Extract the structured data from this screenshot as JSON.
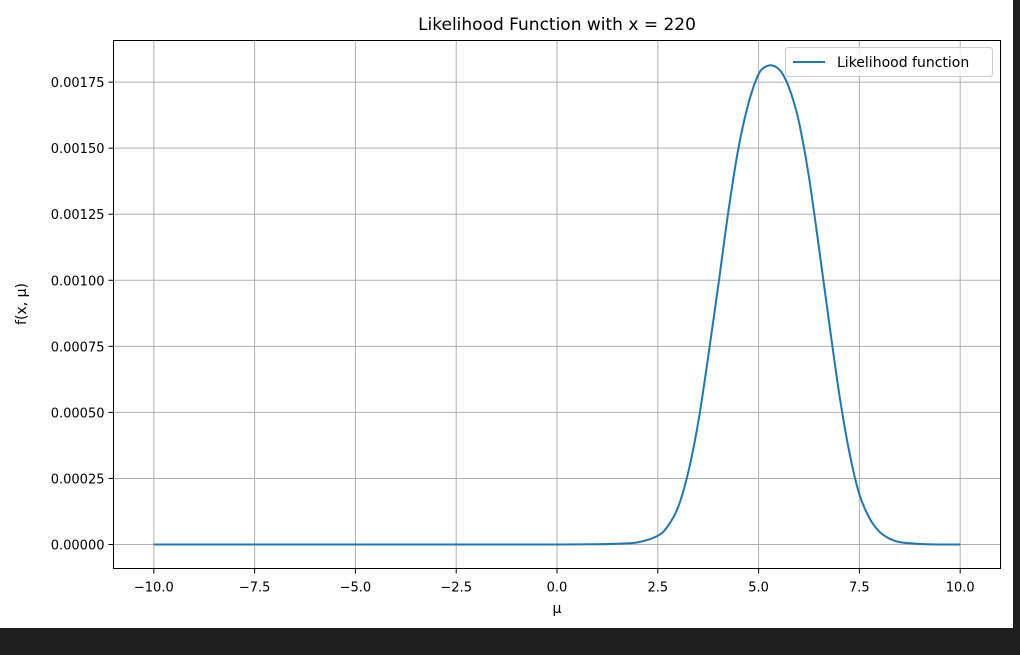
{
  "chart_data": {
    "type": "line",
    "title": "Likelihood Function with x = 220",
    "xlabel": "μ",
    "ylabel": "f(x, μ)",
    "xlim": [
      -11.0,
      11.0
    ],
    "ylim": [
      -9.08e-05,
      0.0019075
    ],
    "x_ticks": [
      -10.0,
      -7.5,
      -5.0,
      -2.5,
      0.0,
      2.5,
      5.0,
      7.5,
      10.0
    ],
    "x_tick_labels": [
      "−10.0",
      "−7.5",
      "−5.0",
      "−2.5",
      "0.0",
      "2.5",
      "5.0",
      "7.5",
      "10.0"
    ],
    "y_ticks": [
      0.0,
      0.00025,
      0.0005,
      0.00075,
      0.001,
      0.00125,
      0.0015,
      0.00175
    ],
    "y_tick_labels": [
      "0.00000",
      "0.00025",
      "0.00050",
      "0.00075",
      "0.00100",
      "0.00125",
      "0.00150",
      "0.00175"
    ],
    "grid": true,
    "legend_position": "top-right",
    "series": [
      {
        "name": "Likelihood function",
        "color": "#1f77b4",
        "x": [
          -10.0,
          -2.0,
          0.0,
          1.0,
          1.5,
          2.0,
          2.5,
          2.75,
          3.0,
          3.25,
          3.5,
          3.75,
          4.0,
          4.25,
          4.5,
          4.75,
          5.0,
          5.2,
          5.4,
          5.6,
          5.8,
          6.0,
          6.25,
          6.5,
          6.75,
          7.0,
          7.25,
          7.5,
          7.75,
          8.0,
          8.25,
          8.5,
          9.0,
          9.5,
          10.0
        ],
        "y": [
          0.0,
          0.0,
          0.0,
          1e-06,
          3e-06,
          8e-06,
          3.3e-05,
          7e-05,
          0.00014,
          0.00027,
          0.00046,
          0.00071,
          0.00098,
          0.00126,
          0.0015,
          0.00167,
          0.00178,
          0.00181,
          0.00181,
          0.00178,
          0.00171,
          0.0016,
          0.00139,
          0.00112,
          0.00084,
          0.00057,
          0.00035,
          0.00019,
          0.0001,
          4.8e-05,
          2.2e-05,
          9e-06,
          2e-06,
          0.0,
          0.0
        ]
      }
    ]
  }
}
